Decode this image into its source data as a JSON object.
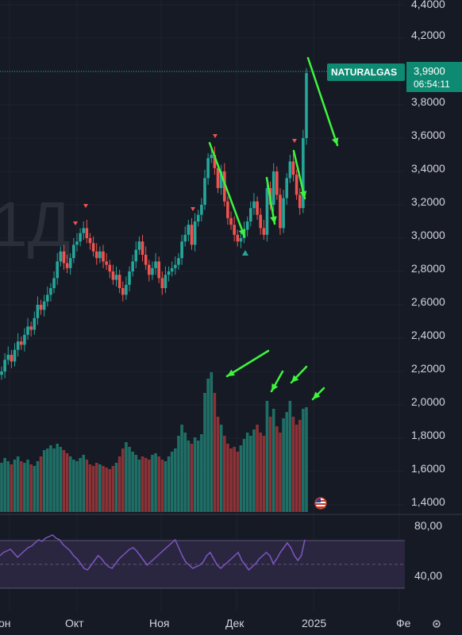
{
  "colors": {
    "background": "#161a25",
    "grid": "#1f2330",
    "up": "#26a69a",
    "down": "#ef5350",
    "volume_up": "#1f6f66",
    "volume_down": "#8b3236",
    "rsi_line": "#7e57c2",
    "rsi_band": "#2a2640",
    "arrows": "#3df53d",
    "price_tag": "#0f8a72"
  },
  "watermark": "1Д",
  "symbol_tag": "NATURALGAS",
  "last_price": "3,9900",
  "countdown": "06:54:11",
  "price_axis_labels": [
    "4,4000",
    "4,2000",
    "4,0000",
    "3,8000",
    "3,6000",
    "3,4000",
    "3,2000",
    "3,0000",
    "2,8000",
    "2,6000",
    "2,4000",
    "2,2000",
    "2,0000",
    "1,8000",
    "1,6000",
    "1,4000"
  ],
  "rsi_axis_labels": [
    "80,00",
    "40,00"
  ],
  "time_axis_labels": [
    "он",
    "Окт",
    "Ноя",
    "Дек",
    "2025",
    "Фе"
  ],
  "settings_icon": "gear-icon",
  "flag_icon": "us-flag-icon",
  "chart_data": {
    "type": "candlestick",
    "title": "",
    "price_scale": {
      "min": 1.4,
      "max": 4.4,
      "step": 0.2
    },
    "rsi_scale": {
      "upper_band": 70,
      "lower_band": 30,
      "mid": 50
    },
    "timeframe": "1D",
    "last_price": 3.99,
    "grid": true,
    "markers": [
      {
        "type": "down-triangle",
        "near_price": 3.17,
        "period": "Oct"
      },
      {
        "type": "down-triangle",
        "near_price": 3.06,
        "period": "Oct"
      },
      {
        "type": "down-triangle",
        "near_price": 3.15,
        "period": "Nov"
      },
      {
        "type": "down-triangle",
        "near_price": 3.62,
        "period": "Nov"
      },
      {
        "type": "up-triangle",
        "near_price": 2.87,
        "period": "Dec"
      },
      {
        "type": "down-triangle",
        "near_price": 3.57,
        "period": "Dec"
      }
    ]
  }
}
